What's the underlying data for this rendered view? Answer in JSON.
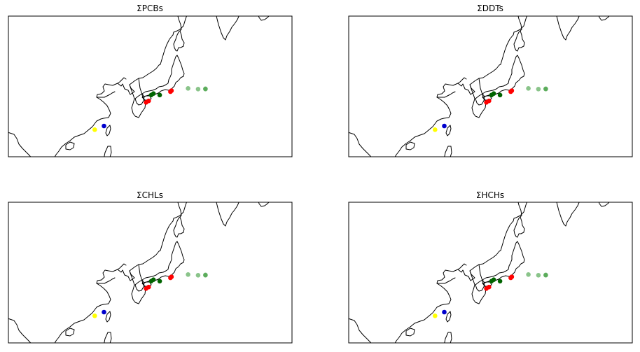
{
  "figure": {
    "panels": [
      {
        "id": "pcbs",
        "title": "ΣPCBs"
      },
      {
        "id": "ddts",
        "title": "ΣDDTs"
      },
      {
        "id": "chls",
        "title": "ΣCHLs"
      },
      {
        "id": "hchs",
        "title": "ΣHCHs"
      }
    ],
    "colors": {
      "red": "#ff0000",
      "dark_green": "#006400",
      "light_green": "#3c9c3c",
      "blue": "#0000cd",
      "yellow": "#ffff00"
    },
    "markers": [
      {
        "lon": 119.0,
        "lat": 25.2,
        "color": "yellow",
        "alpha": 1.0
      },
      {
        "lon": 121.5,
        "lat": 26.2,
        "color": "blue",
        "alpha": 1.0
      },
      {
        "lon": 132.9,
        "lat": 32.6,
        "color": "red",
        "alpha": 1.0
      },
      {
        "lon": 133.6,
        "lat": 33.0,
        "color": "red",
        "alpha": 1.0
      },
      {
        "lon": 134.3,
        "lat": 34.6,
        "color": "dark_green",
        "alpha": 1.0
      },
      {
        "lon": 134.9,
        "lat": 35.0,
        "color": "dark_green",
        "alpha": 1.0
      },
      {
        "lon": 136.6,
        "lat": 34.6,
        "color": "dark_green",
        "alpha": 1.0
      },
      {
        "lon": 139.5,
        "lat": 35.5,
        "color": "red",
        "alpha": 1.0
      },
      {
        "lon": 139.8,
        "lat": 35.8,
        "color": "red",
        "alpha": 1.0
      },
      {
        "lon": 144.3,
        "lat": 36.4,
        "color": "light_green",
        "alpha": 0.6
      },
      {
        "lon": 147.0,
        "lat": 36.2,
        "color": "light_green",
        "alpha": 0.6
      },
      {
        "lon": 149.0,
        "lat": 36.2,
        "color": "light_green",
        "alpha": 0.6
      },
      {
        "lon": 149.0,
        "lat": 36.3,
        "color": "light_green",
        "alpha": 0.6
      }
    ]
  }
}
